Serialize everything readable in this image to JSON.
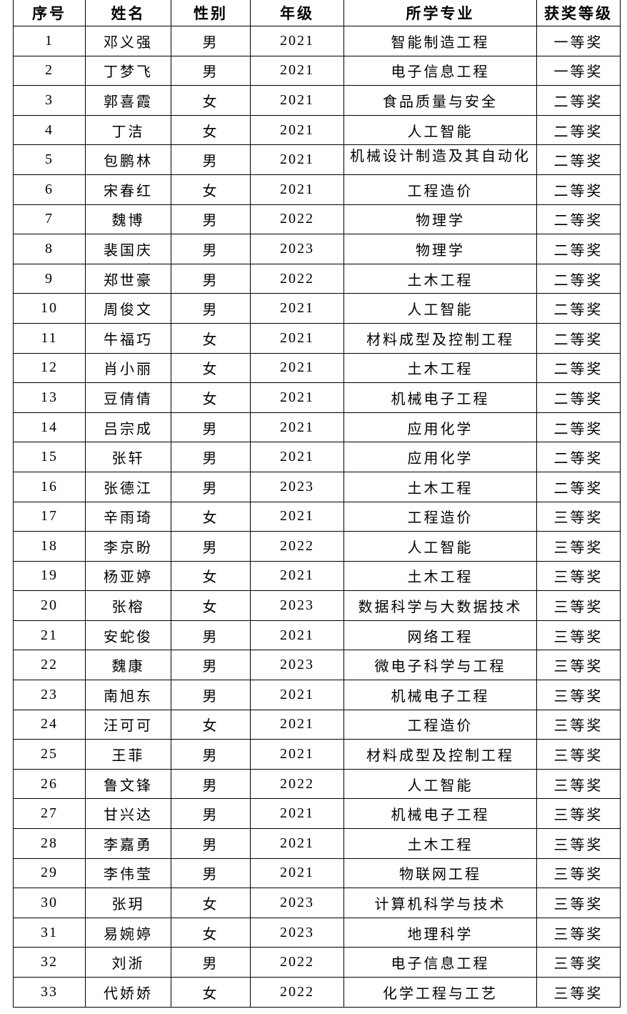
{
  "headers": [
    "序号",
    "姓名",
    "性别",
    "年级",
    "所学专业",
    "获奖等级"
  ],
  "rows": [
    [
      "1",
      "邓义强",
      "男",
      "2021",
      "智能制造工程",
      "一等奖"
    ],
    [
      "2",
      "丁梦飞",
      "男",
      "2021",
      "电子信息工程",
      "一等奖"
    ],
    [
      "3",
      "郭喜霞",
      "女",
      "2021",
      "食品质量与安全",
      "二等奖"
    ],
    [
      "4",
      "丁洁",
      "女",
      "2021",
      "人工智能",
      "二等奖"
    ],
    [
      "5",
      "包鹏林",
      "男",
      "2021",
      "机械设计制造及其自动化",
      "二等奖"
    ],
    [
      "6",
      "宋春红",
      "女",
      "2021",
      "工程造价",
      "二等奖"
    ],
    [
      "7",
      "魏博",
      "男",
      "2022",
      "物理学",
      "二等奖"
    ],
    [
      "8",
      "裴国庆",
      "男",
      "2023",
      "物理学",
      "二等奖"
    ],
    [
      "9",
      "郑世豪",
      "男",
      "2022",
      "土木工程",
      "二等奖"
    ],
    [
      "10",
      "周俊文",
      "男",
      "2021",
      "人工智能",
      "二等奖"
    ],
    [
      "11",
      "牛福巧",
      "女",
      "2021",
      "材料成型及控制工程",
      "二等奖"
    ],
    [
      "12",
      "肖小丽",
      "女",
      "2021",
      "土木工程",
      "二等奖"
    ],
    [
      "13",
      "豆倩倩",
      "女",
      "2021",
      "机械电子工程",
      "二等奖"
    ],
    [
      "14",
      "吕宗成",
      "男",
      "2021",
      "应用化学",
      "二等奖"
    ],
    [
      "15",
      "张轩",
      "男",
      "2021",
      "应用化学",
      "二等奖"
    ],
    [
      "16",
      "张德江",
      "男",
      "2023",
      "土木工程",
      "二等奖"
    ],
    [
      "17",
      "辛雨琦",
      "女",
      "2021",
      "工程造价",
      "三等奖"
    ],
    [
      "18",
      "李京盼",
      "男",
      "2022",
      "人工智能",
      "三等奖"
    ],
    [
      "19",
      "杨亚婷",
      "女",
      "2021",
      "土木工程",
      "三等奖"
    ],
    [
      "20",
      "张榕",
      "女",
      "2023",
      "数据科学与大数据技术",
      "三等奖"
    ],
    [
      "21",
      "安蛇俊",
      "男",
      "2021",
      "网络工程",
      "三等奖"
    ],
    [
      "22",
      "魏康",
      "男",
      "2023",
      "微电子科学与工程",
      "三等奖"
    ],
    [
      "23",
      "南旭东",
      "男",
      "2021",
      "机械电子工程",
      "三等奖"
    ],
    [
      "24",
      "汪可可",
      "女",
      "2021",
      "工程造价",
      "三等奖"
    ],
    [
      "25",
      "王菲",
      "男",
      "2021",
      "材料成型及控制工程",
      "三等奖"
    ],
    [
      "26",
      "鲁文锋",
      "男",
      "2022",
      "人工智能",
      "三等奖"
    ],
    [
      "27",
      "甘兴达",
      "男",
      "2021",
      "机械电子工程",
      "三等奖"
    ],
    [
      "28",
      "李嘉勇",
      "男",
      "2021",
      "土木工程",
      "三等奖"
    ],
    [
      "29",
      "李伟莹",
      "男",
      "2021",
      "物联网工程",
      "三等奖"
    ],
    [
      "30",
      "张玥",
      "女",
      "2023",
      "计算机科学与技术",
      "三等奖"
    ],
    [
      "31",
      "易婉婷",
      "女",
      "2023",
      "地理科学",
      "三等奖"
    ],
    [
      "32",
      "刘浙",
      "男",
      "2022",
      "电子信息工程",
      "三等奖"
    ],
    [
      "33",
      "代娇娇",
      "女",
      "2022",
      "化学工程与工艺",
      "三等奖"
    ]
  ]
}
